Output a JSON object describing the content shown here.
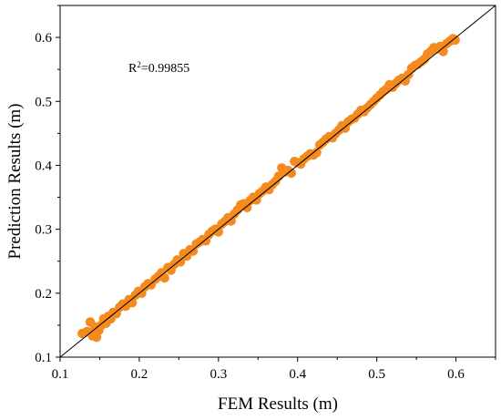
{
  "chart_data": {
    "type": "scatter",
    "title": "",
    "xlabel": "FEM Results (m)",
    "ylabel": "Prediction Results (m)",
    "xlim": [
      0.1,
      0.65
    ],
    "ylim": [
      0.1,
      0.65
    ],
    "x_ticks": [
      "0.1",
      "0.2",
      "0.3",
      "0.4",
      "0.5",
      "0.6"
    ],
    "y_ticks": [
      "0.1",
      "0.2",
      "0.3",
      "0.4",
      "0.5",
      "0.6"
    ],
    "annotation": {
      "prefix": "R",
      "sup": "2",
      "suffix": "=0.99855"
    },
    "fit_line": {
      "x": [
        0.1,
        0.65
      ],
      "y": [
        0.1,
        0.65
      ]
    },
    "grid": false,
    "legend": "none",
    "marker_color": "#f58a1f",
    "line_color": "#000000",
    "series": [
      {
        "points": [
          [
            0.128,
            0.137
          ],
          [
            0.134,
            0.14
          ],
          [
            0.138,
            0.155
          ],
          [
            0.141,
            0.133
          ],
          [
            0.144,
            0.147
          ],
          [
            0.146,
            0.131
          ],
          [
            0.149,
            0.142
          ],
          [
            0.152,
            0.15
          ],
          [
            0.155,
            0.16
          ],
          [
            0.158,
            0.153
          ],
          [
            0.161,
            0.164
          ],
          [
            0.164,
            0.16
          ],
          [
            0.167,
            0.17
          ],
          [
            0.171,
            0.168
          ],
          [
            0.175,
            0.178
          ],
          [
            0.179,
            0.183
          ],
          [
            0.183,
            0.18
          ],
          [
            0.187,
            0.19
          ],
          [
            0.191,
            0.185
          ],
          [
            0.195,
            0.197
          ],
          [
            0.199,
            0.203
          ],
          [
            0.203,
            0.2
          ],
          [
            0.207,
            0.21
          ],
          [
            0.211,
            0.215
          ],
          [
            0.215,
            0.213
          ],
          [
            0.22,
            0.222
          ],
          [
            0.224,
            0.226
          ],
          [
            0.228,
            0.232
          ],
          [
            0.232,
            0.224
          ],
          [
            0.236,
            0.24
          ],
          [
            0.24,
            0.236
          ],
          [
            0.244,
            0.245
          ],
          [
            0.248,
            0.252
          ],
          [
            0.252,
            0.249
          ],
          [
            0.256,
            0.262
          ],
          [
            0.26,
            0.258
          ],
          [
            0.264,
            0.268
          ],
          [
            0.268,
            0.266
          ],
          [
            0.272,
            0.277
          ],
          [
            0.276,
            0.28
          ],
          [
            0.28,
            0.284
          ],
          [
            0.284,
            0.282
          ],
          [
            0.288,
            0.292
          ],
          [
            0.292,
            0.297
          ],
          [
            0.296,
            0.3
          ],
          [
            0.3,
            0.296
          ],
          [
            0.304,
            0.308
          ],
          [
            0.308,
            0.312
          ],
          [
            0.312,
            0.318
          ],
          [
            0.316,
            0.313
          ],
          [
            0.32,
            0.324
          ],
          [
            0.324,
            0.33
          ],
          [
            0.328,
            0.338
          ],
          [
            0.332,
            0.34
          ],
          [
            0.336,
            0.334
          ],
          [
            0.34,
            0.345
          ],
          [
            0.344,
            0.35
          ],
          [
            0.348,
            0.346
          ],
          [
            0.352,
            0.356
          ],
          [
            0.356,
            0.36
          ],
          [
            0.36,
            0.366
          ],
          [
            0.364,
            0.362
          ],
          [
            0.368,
            0.37
          ],
          [
            0.372,
            0.375
          ],
          [
            0.376,
            0.383
          ],
          [
            0.38,
            0.396
          ],
          [
            0.384,
            0.39
          ],
          [
            0.388,
            0.392
          ],
          [
            0.392,
            0.388
          ],
          [
            0.396,
            0.406
          ],
          [
            0.4,
            0.404
          ],
          [
            0.404,
            0.402
          ],
          [
            0.408,
            0.41
          ],
          [
            0.412,
            0.414
          ],
          [
            0.416,
            0.418
          ],
          [
            0.42,
            0.416
          ],
          [
            0.424,
            0.42
          ],
          [
            0.428,
            0.432
          ],
          [
            0.432,
            0.436
          ],
          [
            0.436,
            0.441
          ],
          [
            0.44,
            0.445
          ],
          [
            0.444,
            0.443
          ],
          [
            0.448,
            0.45
          ],
          [
            0.452,
            0.455
          ],
          [
            0.456,
            0.462
          ],
          [
            0.46,
            0.458
          ],
          [
            0.464,
            0.468
          ],
          [
            0.468,
            0.472
          ],
          [
            0.472,
            0.474
          ],
          [
            0.476,
            0.48
          ],
          [
            0.48,
            0.486
          ],
          [
            0.484,
            0.484
          ],
          [
            0.488,
            0.49
          ],
          [
            0.492,
            0.495
          ],
          [
            0.496,
            0.5
          ],
          [
            0.5,
            0.505
          ],
          [
            0.504,
            0.51
          ],
          [
            0.508,
            0.515
          ],
          [
            0.512,
            0.519
          ],
          [
            0.516,
            0.526
          ],
          [
            0.52,
            0.522
          ],
          [
            0.524,
            0.528
          ],
          [
            0.528,
            0.533
          ],
          [
            0.532,
            0.536
          ],
          [
            0.536,
            0.532
          ],
          [
            0.54,
            0.542
          ],
          [
            0.544,
            0.552
          ],
          [
            0.548,
            0.556
          ],
          [
            0.552,
            0.558
          ],
          [
            0.556,
            0.562
          ],
          [
            0.56,
            0.566
          ],
          [
            0.564,
            0.574
          ],
          [
            0.568,
            0.578
          ],
          [
            0.572,
            0.584
          ],
          [
            0.576,
            0.582
          ],
          [
            0.58,
            0.586
          ],
          [
            0.584,
            0.578
          ],
          [
            0.588,
            0.59
          ],
          [
            0.592,
            0.594
          ],
          [
            0.596,
            0.598
          ],
          [
            0.599,
            0.596
          ]
        ]
      }
    ]
  }
}
